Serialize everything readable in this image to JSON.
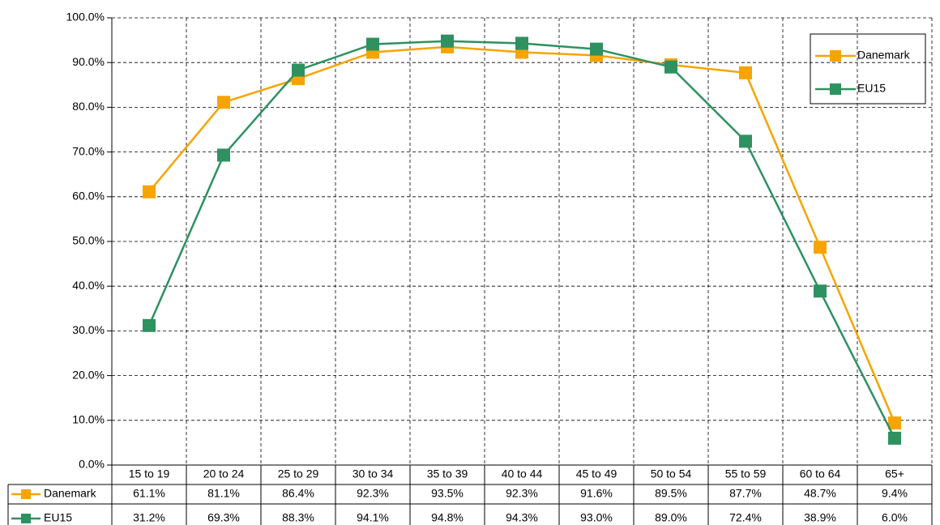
{
  "chart_data": {
    "type": "line",
    "categories": [
      "15 to 19",
      "20 to 24",
      "25 to 29",
      "30 to 34",
      "35 to 39",
      "40 to 44",
      "45 to 49",
      "50 to 54",
      "55 to 59",
      "60 to 64",
      "65+"
    ],
    "series": [
      {
        "name": "Danemark",
        "color": "#f7a400",
        "values": [
          61.1,
          81.1,
          86.4,
          92.3,
          93.5,
          92.3,
          91.6,
          89.5,
          87.7,
          48.7,
          9.4
        ],
        "value_labels": [
          "61.1%",
          "81.1%",
          "86.4%",
          "92.3%",
          "93.5%",
          "92.3%",
          "91.6%",
          "89.5%",
          "87.7%",
          "48.7%",
          "9.4%"
        ]
      },
      {
        "name": "EU15",
        "color": "#2e9160",
        "values": [
          31.2,
          69.3,
          88.3,
          94.1,
          94.8,
          94.3,
          93.0,
          89.0,
          72.4,
          38.9,
          6.0
        ],
        "value_labels": [
          "31.2%",
          "69.3%",
          "88.3%",
          "94.1%",
          "94.8%",
          "94.3%",
          "93.0%",
          "89.0%",
          "72.4%",
          "38.9%",
          "6.0%"
        ]
      }
    ],
    "ylim": [
      0,
      100
    ],
    "yticks": [
      {
        "value": 0,
        "label": "0.0%"
      },
      {
        "value": 10,
        "label": "10.0%"
      },
      {
        "value": 20,
        "label": "20.0%"
      },
      {
        "value": 30,
        "label": "30.0%"
      },
      {
        "value": 40,
        "label": "40.0%"
      },
      {
        "value": 50,
        "label": "50.0%"
      },
      {
        "value": 60,
        "label": "60.0%"
      },
      {
        "value": 70,
        "label": "70.0%"
      },
      {
        "value": 80,
        "label": "80.0%"
      },
      {
        "value": 90,
        "label": "90.0%"
      },
      {
        "value": 100,
        "label": "100.0%"
      }
    ],
    "grid": true,
    "legend": "upper right"
  }
}
